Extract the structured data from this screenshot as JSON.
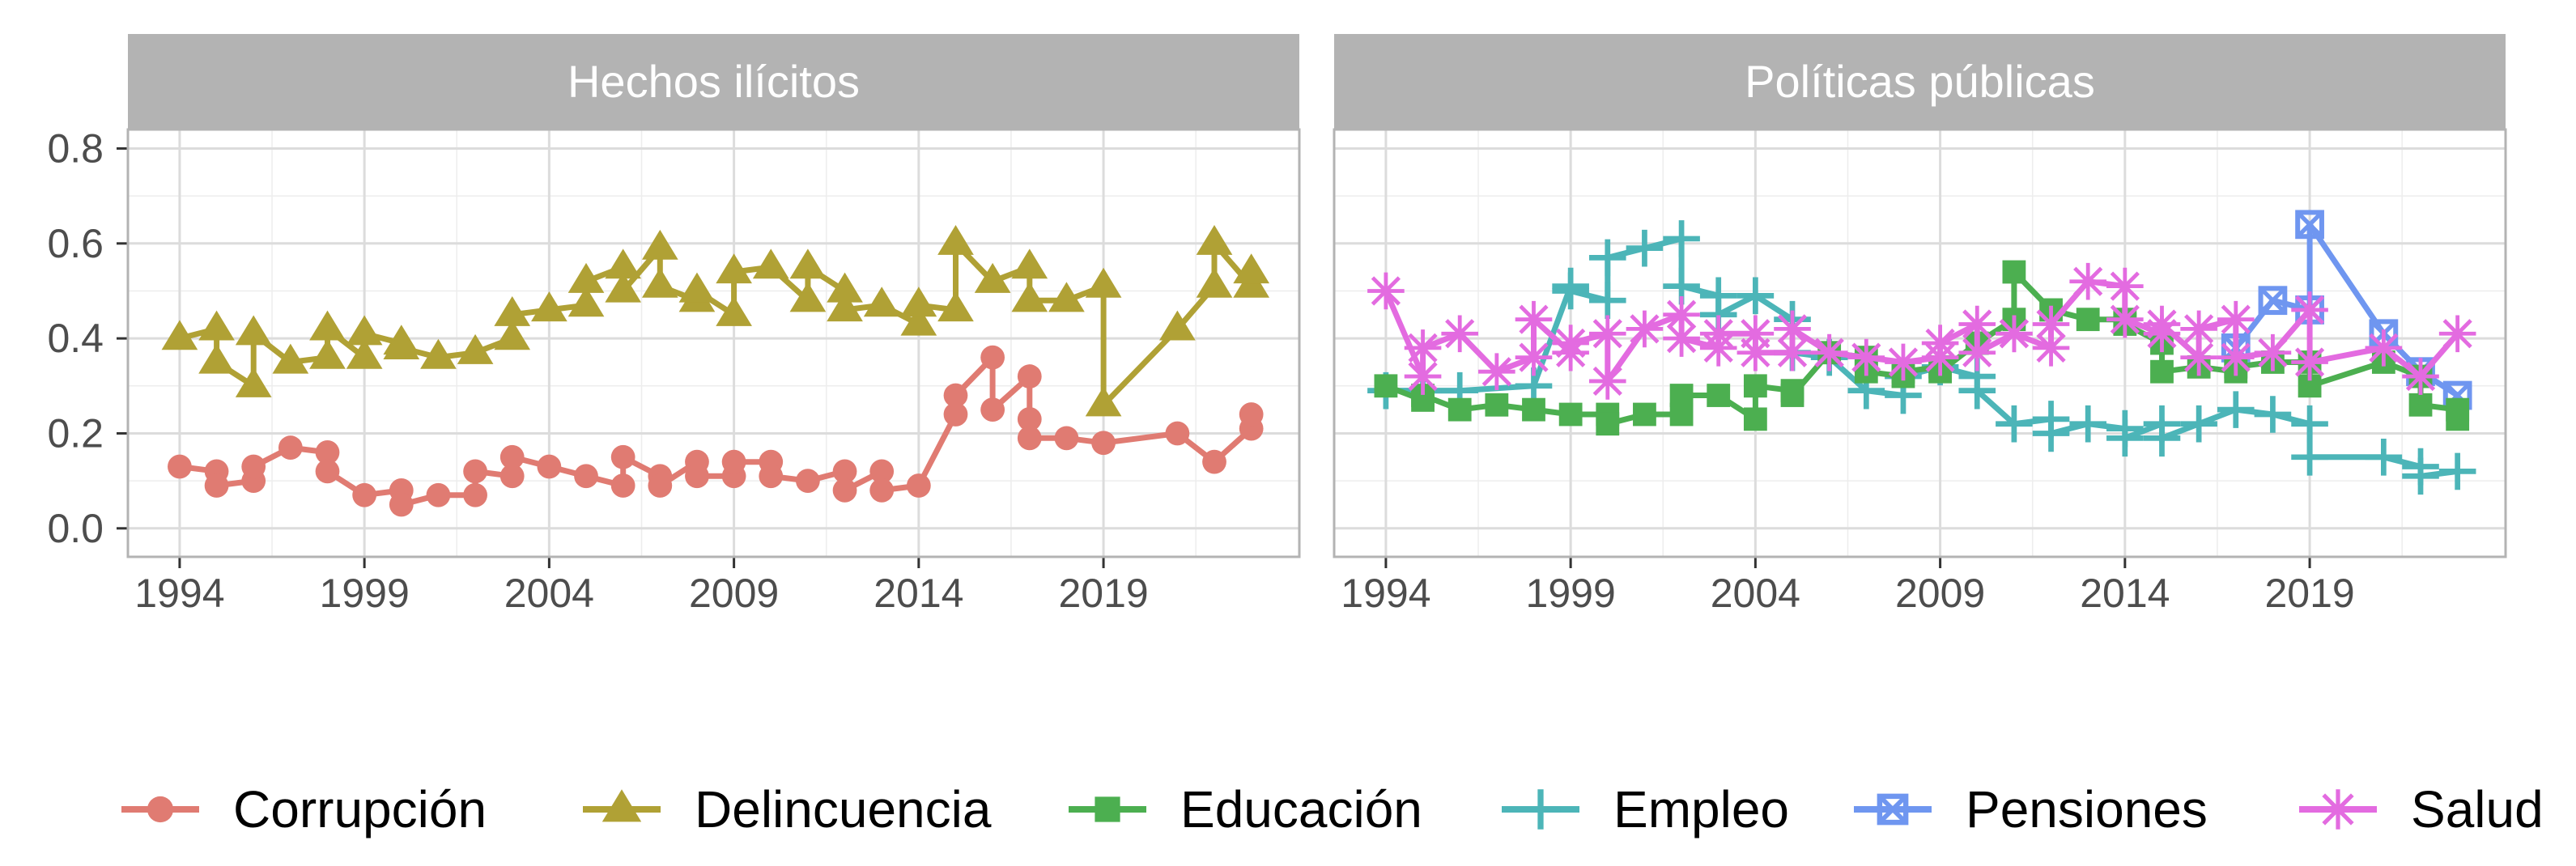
{
  "chart_data": {
    "type": "line",
    "x_ticks": [
      1994,
      1999,
      2004,
      2009,
      2014,
      2019
    ],
    "xlim": [
      1992.6,
      2024.3
    ],
    "ylim": [
      -0.06,
      0.84
    ],
    "y_ticks": [
      "0.0",
      "0.2",
      "0.4",
      "0.6",
      "0.8"
    ],
    "y_tick_values": [
      0,
      0.2,
      0.4,
      0.6,
      0.8
    ],
    "grid": true,
    "legend_position": "bottom",
    "colors": {
      "Corrupción": "#E07B72",
      "Delincuencia": "#B0A135",
      "Educación": "#4CAF50",
      "Empleo": "#4CB5B8",
      "Pensiones": "#6F96F0",
      "Salud": "#E36BE0"
    },
    "legend": [
      {
        "name": "Corrupción",
        "shape": "circle"
      },
      {
        "name": "Delincuencia",
        "shape": "triangle"
      },
      {
        "name": "Educación",
        "shape": "square"
      },
      {
        "name": "Empleo",
        "shape": "plus"
      },
      {
        "name": "Pensiones",
        "shape": "square-x"
      },
      {
        "name": "Salud",
        "shape": "asterisk"
      }
    ],
    "panels": [
      {
        "title": "Hechos ilícitos",
        "series": [
          {
            "name": "Corrupción",
            "shape": "circle",
            "x": [
              1994,
              1995,
              1995,
              1996,
              1996,
              1997,
              1998,
              1998,
              1999,
              2000,
              2000,
              2001,
              2002,
              2002,
              2003,
              2003,
              2004,
              2005,
              2006,
              2006,
              2007,
              2007,
              2008,
              2008,
              2009,
              2009,
              2010,
              2010,
              2011,
              2012,
              2012,
              2013,
              2013,
              2014,
              2015,
              2015,
              2016,
              2016,
              2017,
              2017,
              2017,
              2018,
              2019,
              2021,
              2022,
              2023,
              2023
            ],
            "y": [
              0.13,
              0.12,
              0.09,
              0.1,
              0.13,
              0.17,
              0.16,
              0.12,
              0.07,
              0.08,
              0.05,
              0.07,
              0.07,
              0.12,
              0.11,
              0.15,
              0.13,
              0.11,
              0.09,
              0.15,
              0.11,
              0.09,
              0.14,
              0.11,
              0.11,
              0.14,
              0.14,
              0.11,
              0.1,
              0.12,
              0.08,
              0.12,
              0.08,
              0.09,
              0.24,
              0.28,
              0.36,
              0.25,
              0.32,
              0.23,
              0.19,
              0.19,
              0.18,
              0.2,
              0.14,
              0.21,
              0.24
            ]
          },
          {
            "name": "Delincuencia",
            "shape": "triangle",
            "x": [
              1994,
              1995,
              1995,
              1996,
              1996,
              1997,
              1998,
              1998,
              1999,
              1999,
              2000,
              2000,
              2001,
              2002,
              2003,
              2003,
              2004,
              2005,
              2005,
              2006,
              2006,
              2007,
              2007,
              2008,
              2008,
              2009,
              2009,
              2010,
              2011,
              2011,
              2012,
              2012,
              2013,
              2014,
              2014,
              2015,
              2015,
              2016,
              2017,
              2017,
              2018,
              2019,
              2019,
              2021,
              2022,
              2022,
              2023,
              2023
            ],
            "y": [
              0.4,
              0.42,
              0.35,
              0.3,
              0.41,
              0.35,
              0.36,
              0.42,
              0.36,
              0.41,
              0.39,
              0.38,
              0.36,
              0.37,
              0.4,
              0.45,
              0.46,
              0.47,
              0.52,
              0.55,
              0.5,
              0.59,
              0.51,
              0.48,
              0.5,
              0.45,
              0.54,
              0.55,
              0.48,
              0.55,
              0.5,
              0.46,
              0.47,
              0.43,
              0.47,
              0.46,
              0.6,
              0.52,
              0.55,
              0.48,
              0.48,
              0.51,
              0.26,
              0.42,
              0.51,
              0.6,
              0.51,
              0.54
            ]
          }
        ]
      },
      {
        "title": "Políticas públicas",
        "series": [
          {
            "name": "Empleo",
            "shape": "plus",
            "x": [
              1994,
              1995,
              1996,
              1998,
              1999,
              1999,
              2000,
              2000,
              2001,
              2002,
              2002,
              2003,
              2003,
              2004,
              2005,
              2005,
              2006,
              2007,
              2008,
              2008,
              2009,
              2010,
              2010,
              2011,
              2012,
              2012,
              2013,
              2014,
              2014,
              2015,
              2015,
              2016,
              2017,
              2018,
              2019,
              2019,
              2021,
              2022,
              2022,
              2023
            ],
            "y": [
              0.29,
              0.29,
              0.29,
              0.3,
              0.51,
              0.5,
              0.48,
              0.57,
              0.59,
              0.61,
              0.51,
              0.49,
              0.45,
              0.49,
              0.44,
              0.37,
              0.36,
              0.29,
              0.28,
              0.32,
              0.34,
              0.32,
              0.29,
              0.22,
              0.23,
              0.2,
              0.22,
              0.21,
              0.19,
              0.22,
              0.19,
              0.22,
              0.25,
              0.24,
              0.22,
              0.15,
              0.15,
              0.13,
              0.11,
              0.12
            ]
          },
          {
            "name": "Pensiones",
            "shape": "square-x",
            "x": [
              2017,
              2018,
              2019,
              2019,
              2021,
              2022,
              2023
            ],
            "y": [
              0.38,
              0.48,
              0.46,
              0.64,
              0.41,
              0.33,
              0.28
            ]
          },
          {
            "name": "Educación",
            "shape": "square",
            "x": [
              1994,
              1995,
              1995,
              1996,
              1997,
              1998,
              1999,
              2000,
              2000,
              2001,
              2002,
              2002,
              2003,
              2004,
              2004,
              2005,
              2005,
              2006,
              2007,
              2007,
              2008,
              2008,
              2009,
              2009,
              2010,
              2011,
              2011,
              2012,
              2013,
              2014,
              2014,
              2015,
              2015,
              2016,
              2017,
              2017,
              2018,
              2019,
              2019,
              2021,
              2022,
              2022,
              2023,
              2023
            ],
            "y": [
              0.3,
              0.27,
              0.28,
              0.25,
              0.26,
              0.25,
              0.24,
              0.24,
              0.22,
              0.24,
              0.24,
              0.28,
              0.28,
              0.23,
              0.3,
              0.29,
              0.28,
              0.37,
              0.36,
              0.33,
              0.32,
              0.33,
              0.34,
              0.33,
              0.39,
              0.44,
              0.54,
              0.46,
              0.44,
              0.44,
              0.43,
              0.39,
              0.33,
              0.34,
              0.33,
              0.34,
              0.35,
              0.35,
              0.3,
              0.35,
              0.32,
              0.26,
              0.25,
              0.23
            ]
          },
          {
            "name": "Salud",
            "shape": "asterisk",
            "x": [
              1994,
              1995,
              1995,
              1996,
              1997,
              1998,
              1998,
              1999,
              1999,
              2000,
              2000,
              2001,
              2002,
              2002,
              2003,
              2003,
              2004,
              2004,
              2005,
              2005,
              2006,
              2006,
              2007,
              2008,
              2009,
              2009,
              2010,
              2010,
              2011,
              2011,
              2012,
              2012,
              2013,
              2014,
              2014,
              2015,
              2015,
              2016,
              2016,
              2017,
              2017,
              2018,
              2019,
              2019,
              2021,
              2022,
              2023
            ],
            "y": [
              0.5,
              0.32,
              0.38,
              0.41,
              0.33,
              0.36,
              0.44,
              0.37,
              0.39,
              0.41,
              0.31,
              0.42,
              0.45,
              0.4,
              0.38,
              0.41,
              0.41,
              0.37,
              0.37,
              0.42,
              0.37,
              0.37,
              0.36,
              0.35,
              0.36,
              0.39,
              0.43,
              0.37,
              0.41,
              0.41,
              0.38,
              0.43,
              0.52,
              0.51,
              0.44,
              0.41,
              0.43,
              0.36,
              0.42,
              0.44,
              0.36,
              0.37,
              0.46,
              0.35,
              0.38,
              0.32,
              0.41
            ]
          }
        ]
      }
    ]
  }
}
